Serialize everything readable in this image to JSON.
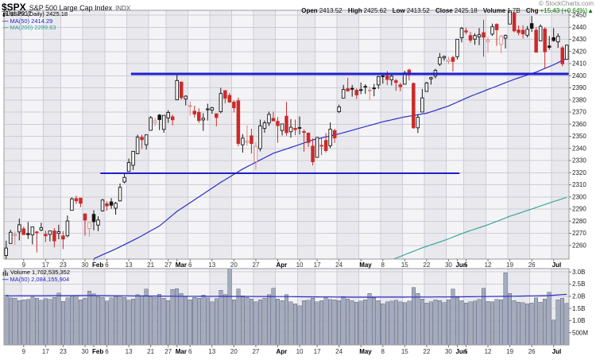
{
  "header": {
    "symbol": "$SPX",
    "title": "S&P 500 Large Cap Index",
    "exchange": "INDX",
    "date": "7-Jul-2017",
    "credit": "© StockCharts.com",
    "quote": {
      "open_label": "Open",
      "open": "2413.52",
      "high_label": "High",
      "high": "2425.62",
      "low_label": "Low",
      "low": "2413.52",
      "close_label": "Close",
      "close": "2425.18",
      "volume_label": "Volume",
      "volume": "1.7B",
      "chg_label": "Chg",
      "chg": "+15.43 (+0.64%)",
      "chg_dir": "▲"
    }
  },
  "price_legend": {
    "name": "$SPX (Daily)",
    "value": "2425.18",
    "ma50": "MA(50) 2414.29",
    "ma200": "MA(200) 2299.63"
  },
  "volume_legend": {
    "label": "Volume",
    "value": "1,702,535,352",
    "ma50": "MA(50) 2,084,155,904"
  },
  "colors": {
    "band_dark": "#e9e9ed",
    "band_light": "#f4f4f6",
    "grid": "#ccccdb",
    "border": "#999999",
    "candle_red": "#cc2a2a",
    "candle_red_hollow": "#dd8585",
    "candle_black": "#151515",
    "candle_fill": "#fcfcfd",
    "ma50": "#2d2dc8",
    "ma200": "#3da59d",
    "trendline": "#1f1fd0",
    "vol_bar_fill": "#a4abbe",
    "vol_bar_stroke": "#5f6678",
    "axis_text": "#1a1a1a",
    "day_tick_text": "#333333",
    "chg_green": "#007a00"
  },
  "chart_data": {
    "type": "candlestick",
    "symbol": "$SPX",
    "timeframe": "daily",
    "title": "$SPX S&P 500 Large Cap Index (Daily)",
    "ylim": [
      2250,
      2453
    ],
    "vol_ylim": [
      0,
      3.2
    ],
    "grid": true,
    "y_ticks": [
      2260,
      2270,
      2280,
      2290,
      2300,
      2310,
      2320,
      2330,
      2340,
      2350,
      2360,
      2370,
      2380,
      2390,
      2400,
      2410,
      2420,
      2430,
      2440,
      2450
    ],
    "vol_ticks": [
      [
        "500M",
        0.5
      ],
      [
        "1.0B",
        1.0
      ],
      [
        "1.5B",
        1.5
      ],
      [
        "2.0B",
        2.0
      ],
      [
        "2.5B",
        2.5
      ],
      [
        "3.0B",
        3.0
      ]
    ],
    "x_ticks": [
      {
        "i": 4,
        "label": "9",
        "month": false
      },
      {
        "i": 9,
        "label": "17",
        "month": false
      },
      {
        "i": 13,
        "label": "23",
        "month": false
      },
      {
        "i": 18,
        "label": "30",
        "month": false
      },
      {
        "i": 20,
        "label": "Feb",
        "month": true
      },
      {
        "i": 23,
        "label": "6",
        "month": false
      },
      {
        "i": 28,
        "label": "13",
        "month": false
      },
      {
        "i": 33,
        "label": "21",
        "month": false
      },
      {
        "i": 37,
        "label": "27",
        "month": false
      },
      {
        "i": 39,
        "label": "Mar",
        "month": true
      },
      {
        "i": 42,
        "label": "6",
        "month": false
      },
      {
        "i": 47,
        "label": "13",
        "month": false
      },
      {
        "i": 52,
        "label": "20",
        "month": false
      },
      {
        "i": 57,
        "label": "27",
        "month": false
      },
      {
        "i": 62,
        "label": "Apr",
        "month": true
      },
      {
        "i": 67,
        "label": "10",
        "month": false
      },
      {
        "i": 71,
        "label": "17",
        "month": false
      },
      {
        "i": 76,
        "label": "24",
        "month": false
      },
      {
        "i": 81,
        "label": "May",
        "month": true
      },
      {
        "i": 86,
        "label": "8",
        "month": false
      },
      {
        "i": 91,
        "label": "15",
        "month": false
      },
      {
        "i": 96,
        "label": "22",
        "month": false
      },
      {
        "i": 101,
        "label": "30",
        "month": false
      },
      {
        "i": 103,
        "label": "Jun",
        "month": true
      },
      {
        "i": 105,
        "label": "5",
        "month": false
      },
      {
        "i": 110,
        "label": "12",
        "month": false
      },
      {
        "i": 115,
        "label": "19",
        "month": false
      },
      {
        "i": 120,
        "label": "26",
        "month": false
      },
      {
        "i": 125,
        "label": "Jul",
        "month": true
      }
    ],
    "week_boundaries": [
      0,
      4,
      9,
      13,
      18,
      23,
      28,
      33,
      37,
      42,
      47,
      52,
      57,
      62,
      67,
      71,
      76,
      81,
      86,
      91,
      96,
      101,
      105,
      110,
      115,
      120,
      125,
      129
    ],
    "candles": [
      [
        2251.6,
        2263.9,
        2245.1,
        2257.8
      ],
      [
        2261.6,
        2272.8,
        2261.6,
        2270.8
      ],
      [
        2268.2,
        2271.5,
        2260.5,
        2269.0
      ],
      [
        2271.1,
        2282.1,
        2264.1,
        2277.0
      ],
      [
        2273.6,
        2275.5,
        2268.9,
        2268.9
      ],
      [
        2269.7,
        2279.3,
        2265.3,
        2268.9
      ],
      [
        2268.6,
        2275.3,
        2260.8,
        2275.3
      ],
      [
        2271.1,
        2271.8,
        2254.2,
        2270.4
      ],
      [
        2272.7,
        2278.7,
        2271.5,
        2274.6
      ],
      [
        2269.1,
        2272.1,
        2262.8,
        2267.9
      ],
      [
        2269.1,
        2272.0,
        2263.3,
        2271.9
      ],
      [
        2271.9,
        2274.3,
        2258.4,
        2263.7
      ],
      [
        2269.9,
        2277.0,
        2265.0,
        2271.3
      ],
      [
        2267.8,
        2271.8,
        2257.0,
        2265.2
      ],
      [
        2267.9,
        2284.6,
        2266.7,
        2280.1
      ],
      [
        2288.9,
        2299.6,
        2288.9,
        2298.4
      ],
      [
        2298.6,
        2301.0,
        2294.1,
        2296.7
      ],
      [
        2299.0,
        2299.0,
        2291.6,
        2294.7
      ],
      [
        2286.0,
        2286.0,
        2268.0,
        2280.9
      ],
      [
        2274.0,
        2279.1,
        2267.2,
        2278.9
      ],
      [
        2285.6,
        2289.1,
        2272.4,
        2279.6
      ],
      [
        2276.7,
        2284.0,
        2271.7,
        2280.9
      ],
      [
        2288.5,
        2298.3,
        2287.9,
        2297.4
      ],
      [
        2294.3,
        2296.5,
        2288.5,
        2292.6
      ],
      [
        2295.9,
        2299.0,
        2290.2,
        2293.1
      ],
      [
        2290.7,
        2295.9,
        2285.4,
        2294.7
      ],
      [
        2296.7,
        2311.1,
        2296.2,
        2307.9
      ],
      [
        2312.3,
        2319.2,
        2311.1,
        2316.1
      ],
      [
        2321.0,
        2331.6,
        2321.0,
        2328.3
      ],
      [
        2326.1,
        2337.6,
        2322.2,
        2337.6
      ],
      [
        2335.6,
        2351.3,
        2335.6,
        2349.3
      ],
      [
        2349.2,
        2351.3,
        2339.6,
        2347.2
      ],
      [
        2343.0,
        2351.3,
        2339.2,
        2351.2
      ],
      [
        2354.9,
        2366.7,
        2354.9,
        2365.4
      ],
      [
        2361.1,
        2365.1,
        2358.3,
        2362.8
      ],
      [
        2367.5,
        2368.3,
        2355.1,
        2363.8
      ],
      [
        2355.7,
        2367.3,
        2352.9,
        2367.3
      ],
      [
        2365.2,
        2371.5,
        2361.0,
        2369.7
      ],
      [
        2366.1,
        2367.8,
        2359.0,
        2363.6
      ],
      [
        2380.1,
        2401.0,
        2380.1,
        2396.0
      ],
      [
        2394.8,
        2394.8,
        2380.2,
        2381.9
      ],
      [
        2380.9,
        2383.9,
        2375.4,
        2383.1
      ],
      [
        2375.2,
        2378.8,
        2367.0,
        2375.3
      ],
      [
        2370.7,
        2375.1,
        2365.5,
        2368.4
      ],
      [
        2369.8,
        2373.1,
        2361.0,
        2363.0
      ],
      [
        2363.5,
        2369.1,
        2354.5,
        2364.9
      ],
      [
        2372.5,
        2376.9,
        2363.0,
        2372.6
      ],
      [
        2371.6,
        2374.4,
        2368.6,
        2373.5
      ],
      [
        2368.6,
        2368.6,
        2358.2,
        2365.5
      ],
      [
        2370.3,
        2390.0,
        2368.9,
        2385.3
      ],
      [
        2387.7,
        2388.1,
        2377.2,
        2381.4
      ],
      [
        2383.7,
        2385.7,
        2377.6,
        2378.3
      ],
      [
        2378.2,
        2379.6,
        2369.7,
        2373.5
      ],
      [
        2379.3,
        2381.9,
        2341.9,
        2344.0
      ],
      [
        2343.0,
        2351.8,
        2336.5,
        2348.5
      ],
      [
        2345.0,
        2358.9,
        2342.1,
        2346.0
      ],
      [
        2350.4,
        2356.2,
        2335.7,
        2344.0
      ],
      [
        2329.1,
        2344.9,
        2322.3,
        2341.6
      ],
      [
        2339.8,
        2363.8,
        2337.6,
        2358.6
      ],
      [
        2356.5,
        2363.0,
        2352.9,
        2361.1
      ],
      [
        2361.0,
        2370.4,
        2358.6,
        2368.1
      ],
      [
        2364.8,
        2370.3,
        2362.6,
        2362.7
      ],
      [
        2362.3,
        2365.9,
        2344.7,
        2358.8
      ],
      [
        2354.8,
        2360.5,
        2350.7,
        2360.2
      ],
      [
        2366.6,
        2378.4,
        2350.5,
        2353.0
      ],
      [
        2353.8,
        2364.2,
        2348.9,
        2357.5
      ],
      [
        2356.6,
        2363.8,
        2350.9,
        2355.5
      ],
      [
        2357.2,
        2366.4,
        2351.5,
        2357.2
      ],
      [
        2353.9,
        2355.7,
        2337.3,
        2353.8
      ],
      [
        2352.7,
        2352.7,
        2341.2,
        2344.9
      ],
      [
        2341.9,
        2348.3,
        2325.9,
        2329.0
      ],
      [
        2332.6,
        2349.1,
        2332.5,
        2349.0
      ],
      [
        2342.5,
        2348.4,
        2334.5,
        2342.2
      ],
      [
        2346.6,
        2352.6,
        2336.7,
        2338.2
      ],
      [
        2342.2,
        2361.4,
        2340.2,
        2355.8
      ],
      [
        2354.7,
        2356.2,
        2344.5,
        2348.7
      ],
      [
        2370.3,
        2376.1,
        2369.2,
        2374.2
      ],
      [
        2381.5,
        2392.4,
        2381.5,
        2388.6
      ],
      [
        2389.3,
        2398.2,
        2386.8,
        2387.5
      ],
      [
        2389.6,
        2392.4,
        2382.7,
        2388.8
      ],
      [
        2388.0,
        2389.5,
        2380.8,
        2384.2
      ],
      [
        2388.5,
        2394.4,
        2384.8,
        2388.3
      ],
      [
        2391.2,
        2392.9,
        2385.0,
        2391.2
      ],
      [
        2387.6,
        2391.0,
        2379.8,
        2388.1
      ],
      [
        2389.9,
        2393.2,
        2383.0,
        2389.5
      ],
      [
        2392.4,
        2399.9,
        2389.2,
        2399.3
      ],
      [
        2399.9,
        2401.4,
        2393.4,
        2399.4
      ],
      [
        2400.0,
        2403.9,
        2392.4,
        2396.9
      ],
      [
        2396.6,
        2401.0,
        2392.0,
        2399.6
      ],
      [
        2395.9,
        2397.3,
        2387.4,
        2394.4
      ],
      [
        2392.4,
        2394.1,
        2387.2,
        2390.9
      ],
      [
        2393.0,
        2404.1,
        2392.8,
        2402.3
      ],
      [
        2404.6,
        2405.8,
        2396.1,
        2400.7
      ],
      [
        2393.6,
        2394.4,
        2356.2,
        2357.0
      ],
      [
        2357.0,
        2368.1,
        2352.7,
        2365.7
      ],
      [
        2370.0,
        2389.1,
        2370.0,
        2381.7
      ],
      [
        2387.0,
        2395.0,
        2386.9,
        2394.0
      ],
      [
        2397.4,
        2399.1,
        2392.6,
        2398.4
      ],
      [
        2399.6,
        2405.6,
        2397.8,
        2404.4
      ],
      [
        2409.5,
        2418.7,
        2408.0,
        2415.1
      ],
      [
        2414.7,
        2416.7,
        2412.4,
        2415.8
      ],
      [
        2411.8,
        2415.7,
        2409.6,
        2412.9
      ],
      [
        2415.0,
        2416.5,
        2403.6,
        2411.8
      ],
      [
        2415.7,
        2430.1,
        2413.4,
        2430.1
      ],
      [
        2431.3,
        2440.2,
        2427.5,
        2439.1
      ],
      [
        2437.0,
        2439.5,
        2434.2,
        2436.1
      ],
      [
        2433.1,
        2436.1,
        2427.2,
        2429.3
      ],
      [
        2430.2,
        2435.0,
        2425.5,
        2433.1
      ],
      [
        2432.1,
        2439.3,
        2425.2,
        2433.8
      ],
      [
        2435.5,
        2446.2,
        2415.7,
        2431.8
      ],
      [
        2428.0,
        2432.0,
        2419.0,
        2429.4
      ],
      [
        2434.3,
        2443.0,
        2432.8,
        2440.4
      ],
      [
        2442.4,
        2443.2,
        2424.7,
        2437.9
      ],
      [
        2425.9,
        2433.7,
        2418.5,
        2432.5
      ],
      [
        2431.0,
        2434.0,
        2422.4,
        2433.2
      ],
      [
        2442.6,
        2453.8,
        2442.6,
        2453.5
      ],
      [
        2451.9,
        2452.1,
        2435.9,
        2437.0
      ],
      [
        2437.7,
        2441.4,
        2433.3,
        2435.6
      ],
      [
        2437.5,
        2441.6,
        2430.7,
        2434.5
      ],
      [
        2433.4,
        2441.0,
        2431.6,
        2438.3
      ],
      [
        2443.0,
        2449.2,
        2436.2,
        2439.1
      ],
      [
        2437.6,
        2440.2,
        2419.0,
        2419.4
      ],
      [
        2428.7,
        2442.3,
        2428.7,
        2440.7
      ],
      [
        2438.5,
        2440.1,
        2405.7,
        2419.7
      ],
      [
        2424.5,
        2432.7,
        2421.4,
        2423.4
      ],
      [
        2431.4,
        2439.2,
        2428.0,
        2429.0
      ],
      [
        2427.9,
        2434.9,
        2422.9,
        2432.5
      ],
      [
        2423.0,
        2424.6,
        2407.7,
        2409.8
      ],
      [
        2413.5,
        2425.6,
        2413.5,
        2425.2
      ]
    ],
    "volumes": [
      2.05,
      1.94,
      1.92,
      1.82,
      1.86,
      1.87,
      1.97,
      1.92,
      1.84,
      1.91,
      1.87,
      1.95,
      2.13,
      1.79,
      1.94,
      2.04,
      2.01,
      1.86,
      1.92,
      2.21,
      2.1,
      1.98,
      1.95,
      1.81,
      1.93,
      1.99,
      2.03,
      1.95,
      1.84,
      1.89,
      2.07,
      2.01,
      2.29,
      2.02,
      1.95,
      2.09,
      1.92,
      1.82,
      2.28,
      2.32,
      2.12,
      1.98,
      1.86,
      1.95,
      1.92,
      2.05,
      1.94,
      1.78,
      1.9,
      2.25,
      2.06,
      3.17,
      1.85,
      2.3,
      2.02,
      1.96,
      1.88,
      1.78,
      1.85,
      1.92,
      2.06,
      2.33,
      1.89,
      1.82,
      2.06,
      1.78,
      1.69,
      1.61,
      1.82,
      1.84,
      1.92,
      1.78,
      1.83,
      1.95,
      1.87,
      1.85,
      1.83,
      1.99,
      1.89,
      1.82,
      1.75,
      1.81,
      1.86,
      2.11,
      1.94,
      1.83,
      1.69,
      1.78,
      1.8,
      1.84,
      1.78,
      1.74,
      1.81,
      2.36,
      2.11,
      1.89,
      1.72,
      1.77,
      1.86,
      1.82,
      1.74,
      1.85,
      2.3,
      1.95,
      1.82,
      1.72,
      1.78,
      1.8,
      1.87,
      2.33,
      1.79,
      1.77,
      1.87,
      1.86,
      2.96,
      2.11,
      1.83,
      1.76,
      1.74,
      1.69,
      1.72,
      1.93,
      1.76,
      1.89,
      2.17,
      1.02,
      1.85,
      1.92,
      1.7
    ],
    "ma50": [
      [
        20,
        2249
      ],
      [
        25,
        2257
      ],
      [
        30,
        2266
      ],
      [
        35,
        2276
      ],
      [
        39,
        2288
      ],
      [
        44,
        2300
      ],
      [
        49,
        2312
      ],
      [
        54,
        2323
      ],
      [
        61,
        2336
      ],
      [
        66,
        2342
      ],
      [
        70,
        2347
      ],
      [
        76,
        2352
      ],
      [
        81,
        2357
      ],
      [
        86,
        2362
      ],
      [
        91,
        2366
      ],
      [
        96,
        2369
      ],
      [
        101,
        2375
      ],
      [
        106,
        2383
      ],
      [
        111,
        2390
      ],
      [
        116,
        2397
      ],
      [
        121,
        2403
      ],
      [
        125,
        2409
      ],
      [
        128,
        2414.3
      ]
    ],
    "ma200": [
      [
        88,
        2248
      ],
      [
        95,
        2258
      ],
      [
        100,
        2264
      ],
      [
        105,
        2271
      ],
      [
        110,
        2277
      ],
      [
        115,
        2284
      ],
      [
        120,
        2290
      ],
      [
        124,
        2295
      ],
      [
        128,
        2299.6
      ]
    ],
    "vol_ma50": [
      [
        0,
        2.02
      ],
      [
        20,
        2.03
      ],
      [
        40,
        2.0
      ],
      [
        60,
        1.99
      ],
      [
        80,
        1.96
      ],
      [
        100,
        1.97
      ],
      [
        115,
        2.0
      ],
      [
        124,
        2.03
      ],
      [
        128,
        2.08
      ]
    ],
    "trendlines": [
      {
        "price": 2401.5,
        "from": 29,
        "to": 129,
        "width": 3
      },
      {
        "price": 2319.5,
        "from": 22,
        "to": 104,
        "width": 2
      }
    ]
  }
}
